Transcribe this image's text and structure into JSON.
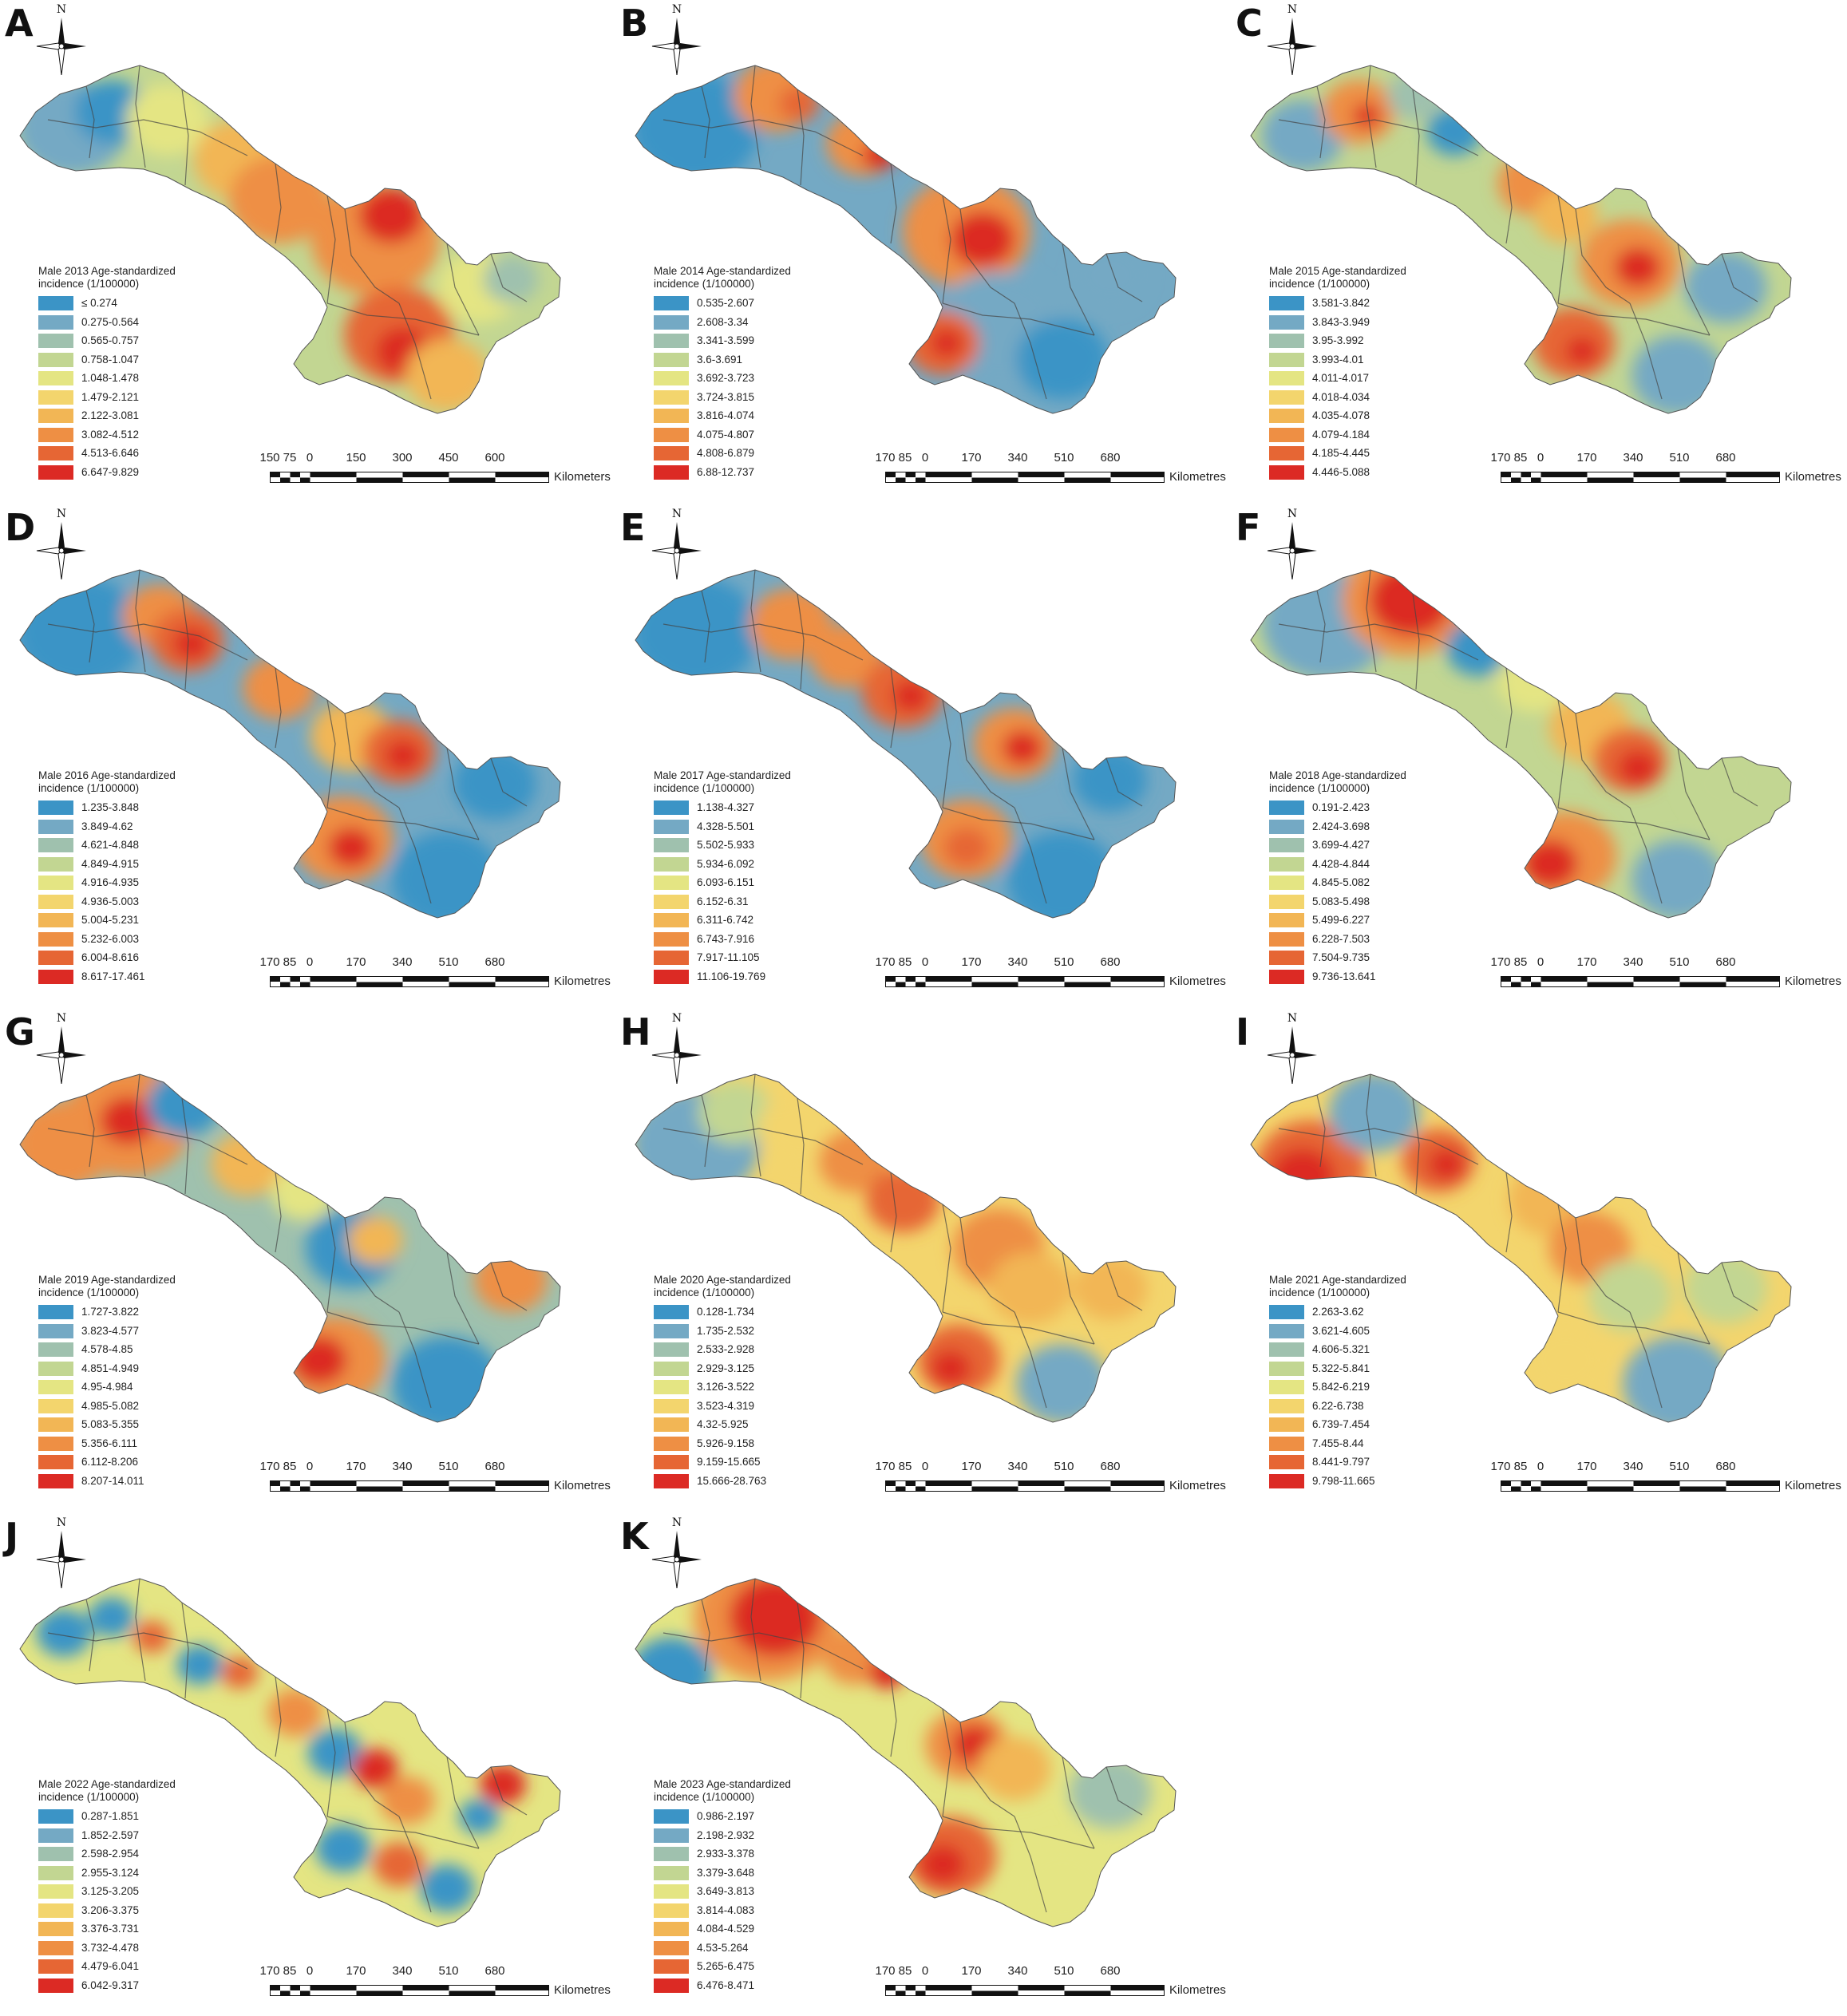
{
  "common": {
    "north_label": "N",
    "incidence_unit": "incidence (1/100000)",
    "scale_unit_default": "Kilometres",
    "scale_ticks_default": [
      "170",
      "85",
      "0",
      "170",
      "340",
      "510",
      "680"
    ]
  },
  "palette": [
    "#3b94c6",
    "#74a9c4",
    "#9fc1ae",
    "#c2d692",
    "#e4e583",
    "#f3d56d",
    "#f2b655",
    "#ee8f44",
    "#e66634",
    "#dc2a24"
  ],
  "panels": [
    {
      "letter": "A",
      "legend_title": "Male 2013 Age-standardized",
      "legend_unit": "incidence (1/100000)",
      "classes": [
        "≤ 0.274",
        "0.275-0.564",
        "0.565-0.757",
        "0.758-1.047",
        "1.048-1.478",
        "1.479-2.121",
        "2.122-3.081",
        "3.082-4.512",
        "4.513-6.646",
        "6.647-9.829"
      ],
      "scale_ticks": [
        "150",
        "75",
        "0",
        "150",
        "300",
        "450",
        "600"
      ],
      "scale_unit": "Kilometers"
    },
    {
      "letter": "B",
      "legend_title": "Male 2014 Age-standardized",
      "legend_unit": "incidence (1/100000)",
      "classes": [
        "0.535-2.607",
        "2.608-3.34",
        "3.341-3.599",
        "3.6-3.691",
        "3.692-3.723",
        "3.724-3.815",
        "3.816-4.074",
        "4.075-4.807",
        "4.808-6.879",
        "6.88-12.737"
      ]
    },
    {
      "letter": "C",
      "legend_title": "Male 2015 Age-standardized",
      "legend_unit": "incidence (1/100000)",
      "classes": [
        "3.581-3.842",
        "3.843-3.949",
        "3.95-3.992",
        "3.993-4.01",
        "4.011-4.017",
        "4.018-4.034",
        "4.035-4.078",
        "4.079-4.184",
        "4.185-4.445",
        "4.446-5.088"
      ]
    },
    {
      "letter": "D",
      "legend_title": "Male 2016 Age-standardized",
      "legend_unit": "incidence (1/100000)",
      "classes": [
        "1.235-3.848",
        "3.849-4.62",
        "4.621-4.848",
        "4.849-4.915",
        "4.916-4.935",
        "4.936-5.003",
        "5.004-5.231",
        "5.232-6.003",
        "6.004-8.616",
        "8.617-17.461"
      ]
    },
    {
      "letter": "E",
      "legend_title": "Male 2017 Age-standardized",
      "legend_unit": "incidence (1/100000)",
      "classes": [
        "1.138-4.327",
        "4.328-5.501",
        "5.502-5.933",
        "5.934-6.092",
        "6.093-6.151",
        "6.152-6.31",
        "6.311-6.742",
        "6.743-7.916",
        "7.917-11.105",
        "11.106-19.769"
      ]
    },
    {
      "letter": "F",
      "legend_title": "Male 2018 Age-standardized",
      "legend_unit": "incidence (1/100000)",
      "classes": [
        "0.191-2.423",
        "2.424-3.698",
        "3.699-4.427",
        "4.428-4.844",
        "4.845-5.082",
        "5.083-5.498",
        "5.499-6.227",
        "6.228-7.503",
        "7.504-9.735",
        "9.736-13.641"
      ]
    },
    {
      "letter": "G",
      "legend_title": "Male 2019 Age-standardized",
      "legend_unit": "incidence (1/100000)",
      "classes": [
        "1.727-3.822",
        "3.823-4.577",
        "4.578-4.85",
        "4.851-4.949",
        "4.95-4.984",
        "4.985-5.082",
        "5.083-5.355",
        "5.356-6.111",
        "6.112-8.206",
        "8.207-14.011"
      ]
    },
    {
      "letter": "H",
      "legend_title": "Male 2020 Age-standardized",
      "legend_unit": "incidence (1/100000)",
      "classes": [
        "0.128-1.734",
        "1.735-2.532",
        "2.533-2.928",
        "2.929-3.125",
        "3.126-3.522",
        "3.523-4.319",
        "4.32-5.925",
        "5.926-9.158",
        "9.159-15.665",
        "15.666-28.763"
      ]
    },
    {
      "letter": "I",
      "legend_title": "Male 2021 Age-standardized",
      "legend_unit": "incidence (1/100000)",
      "classes": [
        "2.263-3.62",
        "3.621-4.605",
        "4.606-5.321",
        "5.322-5.841",
        "5.842-6.219",
        "6.22-6.738",
        "6.739-7.454",
        "7.455-8.44",
        "8.441-9.797",
        "9.798-11.665"
      ]
    },
    {
      "letter": "J",
      "legend_title": "Male 2022 Age-standardized",
      "legend_unit": "incidence (1/100000)",
      "classes": [
        "0.287-1.851",
        "1.852-2.597",
        "2.598-2.954",
        "2.955-3.124",
        "3.125-3.205",
        "3.206-3.375",
        "3.376-3.731",
        "3.732-4.478",
        "4.479-6.041",
        "6.042-9.317"
      ]
    },
    {
      "letter": "K",
      "legend_title": "Male 2023 Age-standardized",
      "legend_unit": "incidence (1/100000)",
      "classes": [
        "0.986-2.197",
        "2.198-2.932",
        "2.933-3.378",
        "3.379-3.648",
        "3.649-3.813",
        "3.814-4.083",
        "4.084-4.529",
        "4.53-5.264",
        "5.265-6.475",
        "6.476-8.471"
      ]
    }
  ]
}
